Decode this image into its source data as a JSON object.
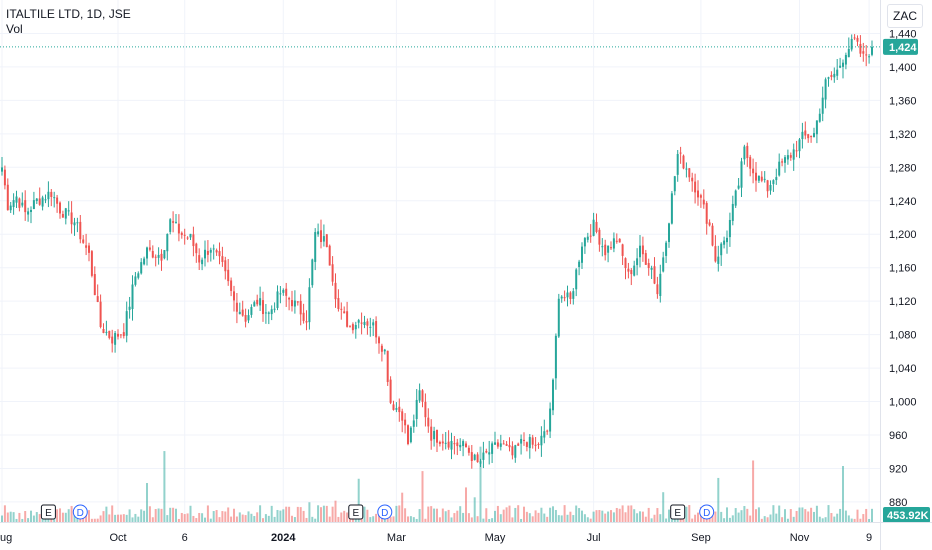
{
  "header": {
    "title": "ITALTILE LTD, 1D, JSE",
    "indicator": "Vol",
    "currency": "ZAC"
  },
  "colors": {
    "up": "#26a69a",
    "down": "#ef5350",
    "grid": "#f0f3fa",
    "price_line": "#26a69a",
    "axis_text": "#131722"
  },
  "chart_data": {
    "type": "candlestick",
    "y_axis": {
      "ticks": [
        880,
        920,
        960,
        1000,
        1040,
        1080,
        1120,
        1160,
        1200,
        1240,
        1280,
        1320,
        1360,
        1400,
        1440
      ],
      "tick_labels": [
        "880",
        "920",
        "960",
        "1,000",
        "1,040",
        "1,080",
        "1,120",
        "1,160",
        "1,200",
        "1,240",
        "1,280",
        "1,320",
        "1,360",
        "1,400",
        "1,440"
      ],
      "range": [
        856,
        1480
      ]
    },
    "x_axis": {
      "labels": [
        "ug",
        "Oct",
        "6",
        "2024",
        "Mar",
        "May",
        "Jul",
        "Sep",
        "Nov",
        "9"
      ],
      "label_bold": [
        false,
        false,
        false,
        true,
        false,
        false,
        false,
        false,
        false,
        false
      ],
      "label_index": [
        0,
        40,
        63,
        97,
        136,
        170,
        204,
        241,
        275,
        299
      ]
    },
    "last_price": 1424,
    "last_price_label": "1,424",
    "last_volume_label": "453.92K",
    "events": [
      {
        "type": "E",
        "index": 16
      },
      {
        "type": "D",
        "index": 27
      },
      {
        "type": "E",
        "index": 122
      },
      {
        "type": "D",
        "index": 132
      },
      {
        "type": "E",
        "index": 233
      },
      {
        "type": "D",
        "index": 243
      }
    ],
    "anchors": [
      [
        0,
        1280
      ],
      [
        2,
        1235
      ],
      [
        5,
        1245
      ],
      [
        8,
        1225
      ],
      [
        12,
        1240
      ],
      [
        17,
        1250
      ],
      [
        20,
        1230
      ],
      [
        25,
        1215
      ],
      [
        30,
        1175
      ],
      [
        34,
        1090
      ],
      [
        38,
        1075
      ],
      [
        42,
        1085
      ],
      [
        46,
        1150
      ],
      [
        50,
        1180
      ],
      [
        55,
        1175
      ],
      [
        58,
        1215
      ],
      [
        62,
        1200
      ],
      [
        65,
        1195
      ],
      [
        68,
        1170
      ],
      [
        72,
        1185
      ],
      [
        76,
        1160
      ],
      [
        80,
        1120
      ],
      [
        84,
        1100
      ],
      [
        88,
        1120
      ],
      [
        92,
        1105
      ],
      [
        96,
        1130
      ],
      [
        100,
        1120
      ],
      [
        105,
        1100
      ],
      [
        108,
        1200
      ],
      [
        112,
        1190
      ],
      [
        116,
        1110
      ],
      [
        120,
        1090
      ],
      [
        124,
        1100
      ],
      [
        128,
        1090
      ],
      [
        132,
        1060
      ],
      [
        134,
        1000
      ],
      [
        138,
        985
      ],
      [
        140,
        950
      ],
      [
        144,
        1010
      ],
      [
        148,
        960
      ],
      [
        152,
        955
      ],
      [
        156,
        950
      ],
      [
        160,
        945
      ],
      [
        164,
        925
      ],
      [
        168,
        940
      ],
      [
        172,
        950
      ],
      [
        176,
        935
      ],
      [
        180,
        955
      ],
      [
        184,
        945
      ],
      [
        188,
        965
      ],
      [
        190,
        1020
      ],
      [
        192,
        1130
      ],
      [
        196,
        1120
      ],
      [
        200,
        1190
      ],
      [
        204,
        1210
      ],
      [
        208,
        1180
      ],
      [
        212,
        1195
      ],
      [
        216,
        1150
      ],
      [
        220,
        1180
      ],
      [
        224,
        1160
      ],
      [
        226,
        1130
      ],
      [
        230,
        1220
      ],
      [
        233,
        1295
      ],
      [
        236,
        1280
      ],
      [
        240,
        1250
      ],
      [
        244,
        1210
      ],
      [
        246,
        1170
      ],
      [
        250,
        1200
      ],
      [
        254,
        1260
      ],
      [
        256,
        1300
      ],
      [
        260,
        1270
      ],
      [
        264,
        1255
      ],
      [
        268,
        1280
      ],
      [
        272,
        1295
      ],
      [
        276,
        1315
      ],
      [
        280,
        1320
      ],
      [
        284,
        1380
      ],
      [
        288,
        1395
      ],
      [
        291,
        1420
      ],
      [
        294,
        1430
      ],
      [
        297,
        1410
      ],
      [
        300,
        1424
      ]
    ]
  }
}
